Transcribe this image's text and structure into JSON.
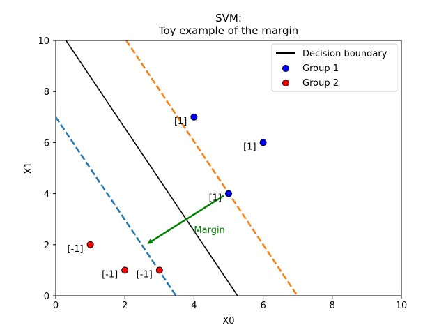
{
  "chart_data": {
    "type": "scatter",
    "title": "SVM:",
    "subtitle": "Toy example of the margin",
    "xlabel": "X0",
    "ylabel": "X1",
    "xlim": [
      0,
      10
    ],
    "ylim": [
      0,
      10
    ],
    "xticks": [
      "0",
      "2",
      "4",
      "6",
      "8",
      "10"
    ],
    "yticks": [
      "0",
      "2",
      "4",
      "6",
      "8",
      "10"
    ],
    "grid": false,
    "legend_position": "top-right",
    "lines": [
      {
        "name": "Decision boundary",
        "color": "#000000",
        "style": "solid",
        "points": [
          [
            0.296,
            10
          ],
          [
            5.26,
            0
          ]
        ]
      },
      {
        "name": "",
        "color": "#ff7f0e",
        "style": "dashed",
        "points": [
          [
            2.04,
            10
          ],
          [
            6.99,
            0
          ]
        ]
      },
      {
        "name": "",
        "color": "#1f77b4",
        "style": "dashed",
        "points": [
          [
            0,
            7.0
          ],
          [
            3.48,
            0
          ]
        ]
      }
    ],
    "series": [
      {
        "name": "Group 1",
        "color": "#0000ff",
        "points": [
          [
            4,
            7
          ],
          [
            6,
            6
          ],
          [
            5,
            4
          ]
        ],
        "labels": [
          "[1]",
          "[1]",
          "[1]"
        ]
      },
      {
        "name": "Group 2",
        "color": "#ff0000",
        "points": [
          [
            1,
            2
          ],
          [
            2,
            1
          ],
          [
            3,
            1
          ]
        ],
        "labels": [
          "[-1]",
          "[-1]",
          "[-1]"
        ]
      }
    ],
    "annotations": [
      {
        "text": "Margin",
        "color": "#008000",
        "text_at": [
          4.0,
          2.6
        ],
        "arrow_from": [
          4.86,
          3.92
        ],
        "arrow_to": [
          2.68,
          2.06
        ]
      }
    ]
  }
}
